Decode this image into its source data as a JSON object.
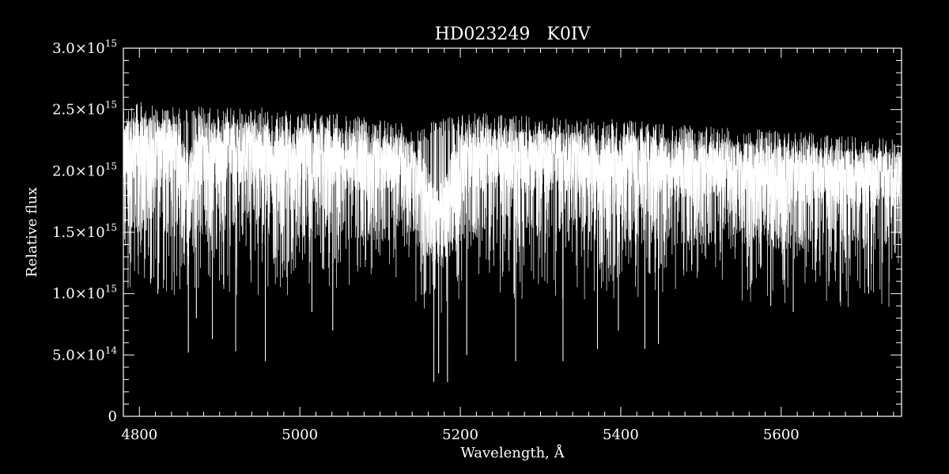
{
  "chart_data": {
    "type": "line",
    "title": "HD023249   K0IV",
    "xlabel": "Wavelength, Å",
    "ylabel": "Relative flux",
    "xlim": [
      4780,
      5750
    ],
    "ylim": [
      0,
      3000000000000000.0
    ],
    "x_ticks": [
      4800,
      5000,
      5200,
      5400,
      5600
    ],
    "x_tick_labels": [
      "4800",
      "5000",
      "5200",
      "5400",
      "5600"
    ],
    "y_ticks": [
      0,
      500000000000000.0,
      1000000000000000.0,
      1500000000000000.0,
      2000000000000000.0,
      2500000000000000.0,
      3000000000000000.0
    ],
    "y_tick_labels": [
      {
        "mantissa": "0",
        "exponent": ""
      },
      {
        "mantissa": "5.0×10",
        "exponent": "14"
      },
      {
        "mantissa": "1.0×10",
        "exponent": "15"
      },
      {
        "mantissa": "1.5×10",
        "exponent": "15"
      },
      {
        "mantissa": "2.0×10",
        "exponent": "15"
      },
      {
        "mantissa": "2.5×10",
        "exponent": "15"
      },
      {
        "mantissa": "3.0×10",
        "exponent": "15"
      }
    ],
    "grid": false,
    "colors": {
      "background": "#000000",
      "foreground": "#ffffff"
    },
    "series": [
      {
        "x": [
          4780,
          4800,
          4850,
          4900,
          4950,
          5000,
          5050,
          5100,
          5150,
          5200,
          5250,
          5300,
          5350,
          5400,
          5450,
          5500,
          5550,
          5600,
          5650,
          5700,
          5750
        ],
        "y": [
          2450000000000000.0,
          2500000000000000.0,
          2450000000000000.0,
          2450000000000000.0,
          2450000000000000.0,
          2400000000000000.0,
          2400000000000000.0,
          2350000000000000.0,
          2300000000000000.0,
          2400000000000000.0,
          2400000000000000.0,
          2380000000000000.0,
          2360000000000000.0,
          2350000000000000.0,
          2320000000000000.0,
          2300000000000000.0,
          2280000000000000.0,
          2260000000000000.0,
          2240000000000000.0,
          2220000000000000.0,
          2200000000000000.0
        ]
      }
    ],
    "absorption_lines": [
      {
        "x": 4823,
        "y": 1000000000000000.0
      },
      {
        "x": 4861,
        "y": 520000000000000.0
      },
      {
        "x": 4871,
        "y": 800000000000000.0
      },
      {
        "x": 4891,
        "y": 630000000000000.0
      },
      {
        "x": 4920,
        "y": 530000000000000.0
      },
      {
        "x": 4957,
        "y": 450000000000000.0
      },
      {
        "x": 5015,
        "y": 850000000000000.0
      },
      {
        "x": 5041,
        "y": 700000000000000.0
      },
      {
        "x": 5167,
        "y": 280000000000000.0
      },
      {
        "x": 5173,
        "y": 350000000000000.0
      },
      {
        "x": 5184,
        "y": 280000000000000.0
      },
      {
        "x": 5208,
        "y": 500000000000000.0
      },
      {
        "x": 5269,
        "y": 450000000000000.0
      },
      {
        "x": 5328,
        "y": 450000000000000.0
      },
      {
        "x": 5371,
        "y": 550000000000000.0
      },
      {
        "x": 5397,
        "y": 700000000000000.0
      },
      {
        "x": 5430,
        "y": 550000000000000.0
      },
      {
        "x": 5447,
        "y": 590000000000000.0
      },
      {
        "x": 5587,
        "y": 900000000000000.0
      },
      {
        "x": 5615,
        "y": 850000000000000.0
      },
      {
        "x": 5709,
        "y": 1000000000000000.0
      }
    ]
  }
}
